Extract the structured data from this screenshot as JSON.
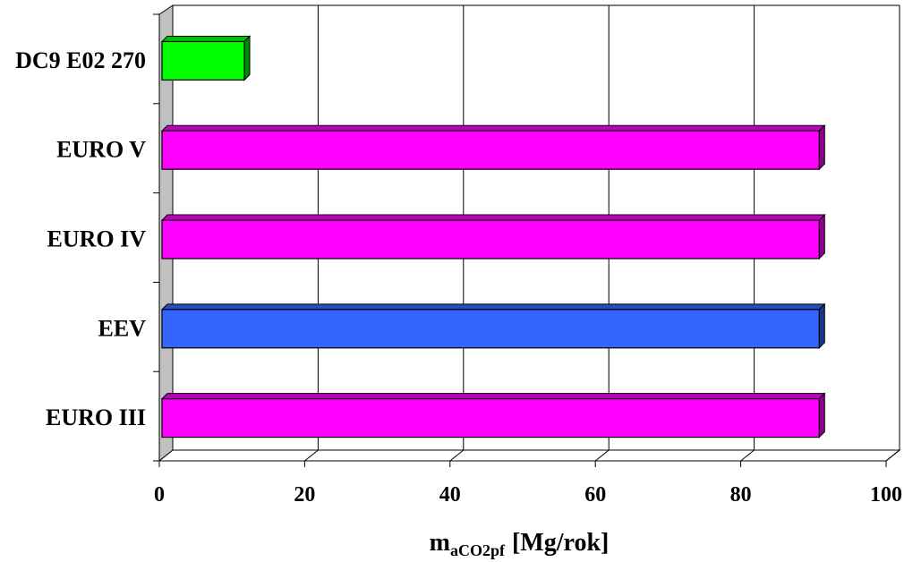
{
  "chart_data": {
    "type": "bar",
    "orientation": "horizontal",
    "style": "3d",
    "title": "",
    "xlabel": {
      "main": "m",
      "subscript": "aCO2pf",
      "unit": "[Mg/rok]"
    },
    "ylabel": "",
    "xlim": [
      0,
      100
    ],
    "x_ticks": [
      "0",
      "20",
      "40",
      "60",
      "80",
      "100"
    ],
    "grid": "vertical",
    "legend": "none",
    "categories": [
      "DC9 E02 270",
      "EURO V",
      "EURO IV",
      "EEV",
      "EURO III"
    ],
    "values": [
      11.7,
      90.8,
      90.8,
      90.8,
      90.8
    ],
    "colors": [
      "#00ff00",
      "#ff00ff",
      "#ff00ff",
      "#3366ff",
      "#ff00ff"
    ]
  }
}
